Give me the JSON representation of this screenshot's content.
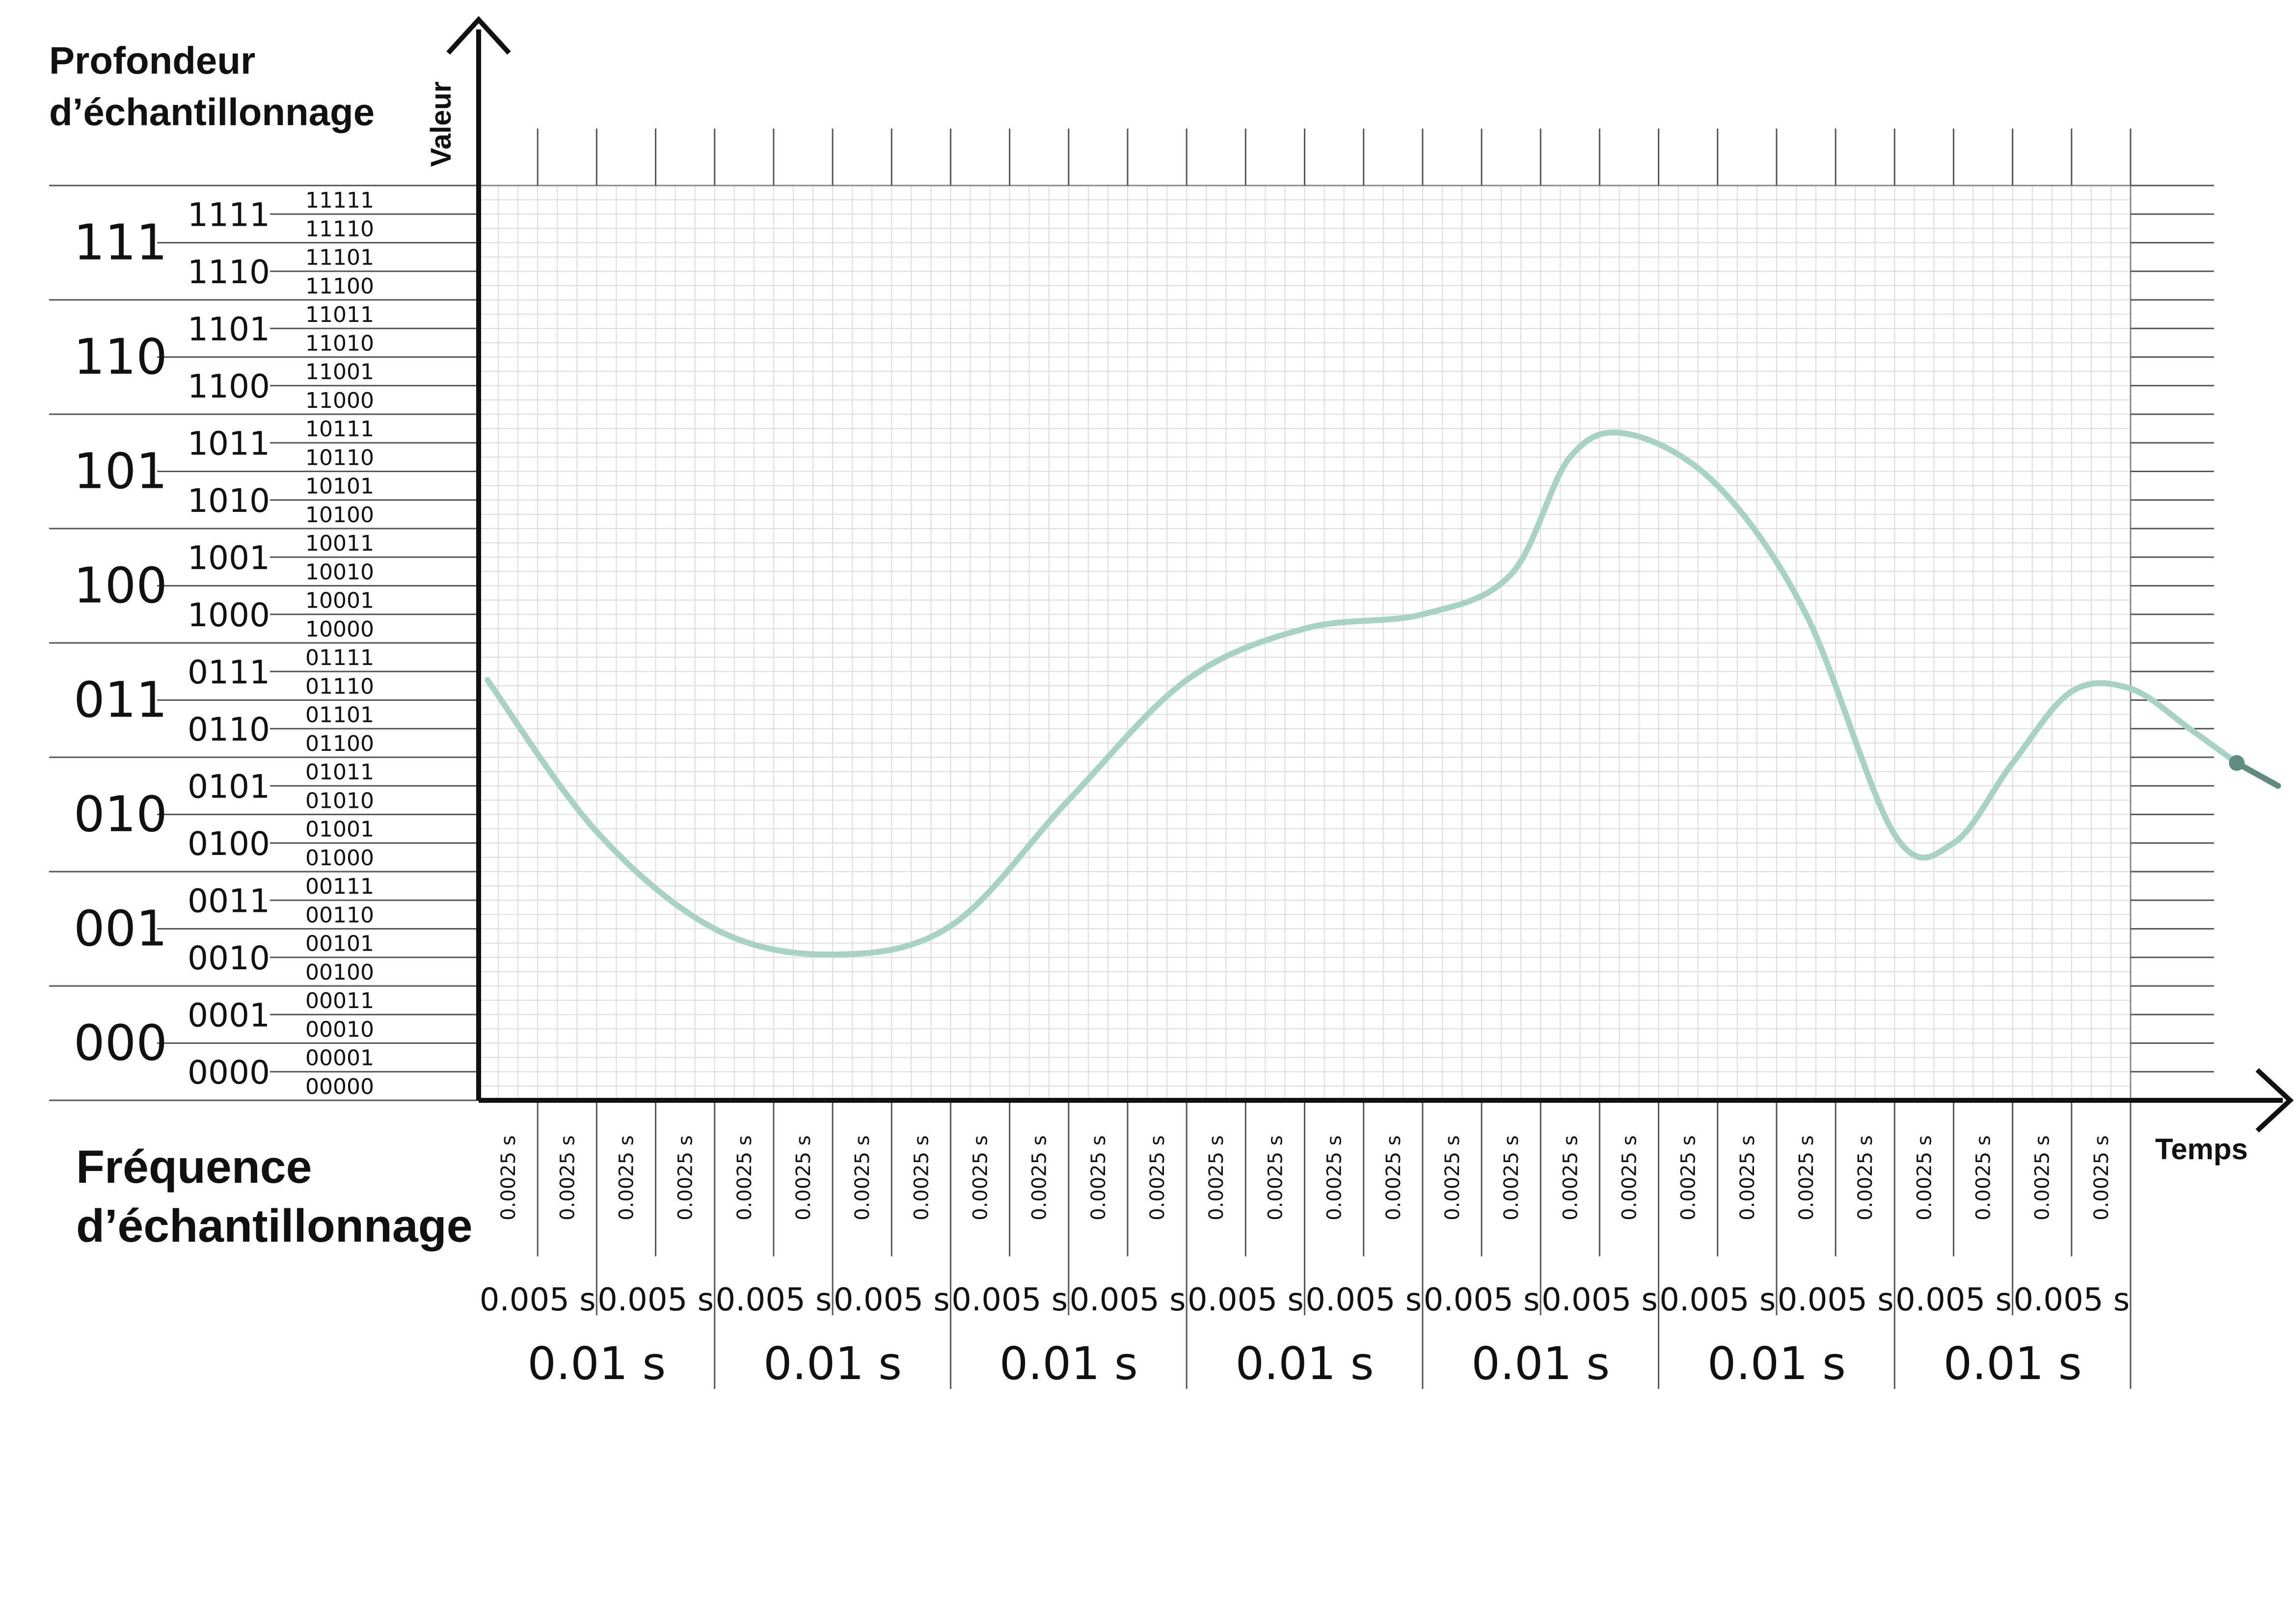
{
  "titles": {
    "depth": [
      "Profondeur",
      "d’échantillonnage"
    ],
    "frequency": [
      "Fréquence",
      "d’échantillonnage"
    ],
    "y_axis": "Valeur",
    "x_axis": "Temps"
  },
  "depth_levels": {
    "bits3": [
      "111",
      "110",
      "101",
      "100",
      "011",
      "010",
      "001",
      "000"
    ],
    "bits4": [
      "1111",
      "1110",
      "1101",
      "1100",
      "1011",
      "1010",
      "1001",
      "1000",
      "0111",
      "0110",
      "0101",
      "0100",
      "0011",
      "0010",
      "0001",
      "0000"
    ],
    "bits5": [
      "11111",
      "11110",
      "11101",
      "11100",
      "11011",
      "11010",
      "11001",
      "11000",
      "10111",
      "10110",
      "10101",
      "10100",
      "10011",
      "10010",
      "10001",
      "10000",
      "01111",
      "01110",
      "01101",
      "01100",
      "01011",
      "01010",
      "01001",
      "01000",
      "00111",
      "00110",
      "00101",
      "00100",
      "00011",
      "00010",
      "00001",
      "00000"
    ]
  },
  "time_intervals": {
    "fine_label": "0.0025 s",
    "fine_count": 28,
    "medium_label": "0.005 s",
    "medium_count": 14,
    "coarse_label": "0.01 s",
    "coarse_count": 7
  },
  "signal": {
    "color": "#a8d3c4",
    "end_color": "#5f8c7e",
    "points": [
      [
        0.15,
        14.7
      ],
      [
        2.0,
        9.4
      ],
      [
        4.0,
        6.0
      ],
      [
        6.0,
        5.1
      ],
      [
        8.0,
        6.1
      ],
      [
        10.0,
        10.5
      ],
      [
        12.0,
        14.7
      ],
      [
        14.0,
        16.5
      ],
      [
        16.0,
        17.0
      ],
      [
        17.5,
        18.4
      ],
      [
        18.5,
        22.5
      ],
      [
        19.5,
        23.3
      ],
      [
        21.0,
        21.5
      ],
      [
        22.5,
        17.0
      ],
      [
        24.0,
        9.3
      ],
      [
        25.0,
        9.0
      ],
      [
        26.0,
        11.8
      ],
      [
        27.0,
        14.3
      ],
      [
        28.0,
        14.4
      ],
      [
        29.0,
        13.0
      ],
      [
        29.8,
        11.8
      ]
    ],
    "end_point": [
      29.8,
      11.8
    ],
    "tail_point": [
      30.5,
      11.0
    ]
  }
}
